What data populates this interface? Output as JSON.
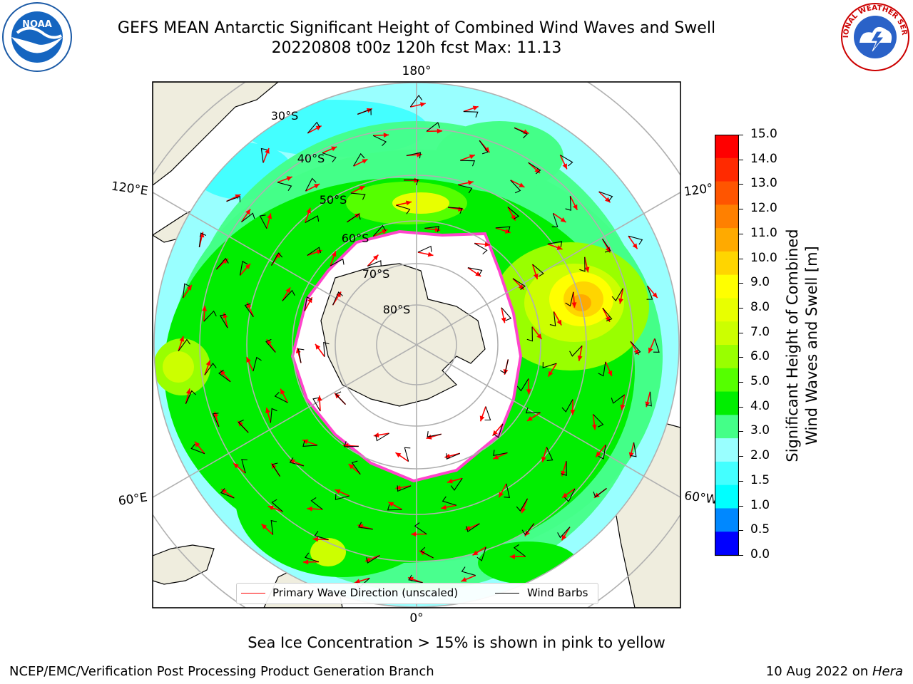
{
  "header": {
    "title_line1": "GEFS MEAN Antarctic Significant Height of Combined Wind Waves and Swell",
    "title_line2": "20220808 t00z 120h fcst   Max: 11.13"
  },
  "logos": {
    "left": "NOAA",
    "right": "NATIONAL WEATHER SERVICE"
  },
  "map": {
    "longitude_labels": [
      "180°",
      "120°E",
      "120°",
      "60°E",
      "60°W",
      "0°"
    ],
    "latitude_labels": [
      "30°S",
      "40°S",
      "50°S",
      "60°S",
      "70°S",
      "80°S"
    ],
    "legend": {
      "primary_wave": "Primary Wave Direction (unscaled)",
      "wind_barbs": "Wind Barbs"
    },
    "colors": {
      "land": "#efedde",
      "ocean_low": "#99ffff",
      "ice_edge": "#ff44cc",
      "arrow": "#ff0000"
    }
  },
  "colorbar": {
    "label_line1": "Significant Height of Combined",
    "label_line2": "Wind Waves and Swell [m]",
    "ticks": [
      "15.0",
      "14.0",
      "13.0",
      "12.0",
      "11.0",
      "10.0",
      "9.0",
      "8.0",
      "7.0",
      "6.0",
      "5.0",
      "4.0",
      "3.0",
      "2.0",
      "1.5",
      "1.0",
      "0.5",
      "0.0"
    ],
    "colors": [
      "#ff0000",
      "#ff2a00",
      "#ff5500",
      "#ff8000",
      "#ffaa00",
      "#ffd500",
      "#ffff00",
      "#e8ff00",
      "#ccff00",
      "#99ff00",
      "#55ff00",
      "#00ee00",
      "#44ff88",
      "#99ffff",
      "#44ffff",
      "#00ffff",
      "#0088ff",
      "#0000ff"
    ]
  },
  "notes": {
    "sea_ice": "Sea Ice Concentration > 15% is shown in pink to yellow"
  },
  "footer": {
    "left": "NCEP/EMC/Verification Post Processing Product Generation Branch",
    "right_prefix": "10 Aug 2022 on ",
    "right_machine": "Hera"
  }
}
